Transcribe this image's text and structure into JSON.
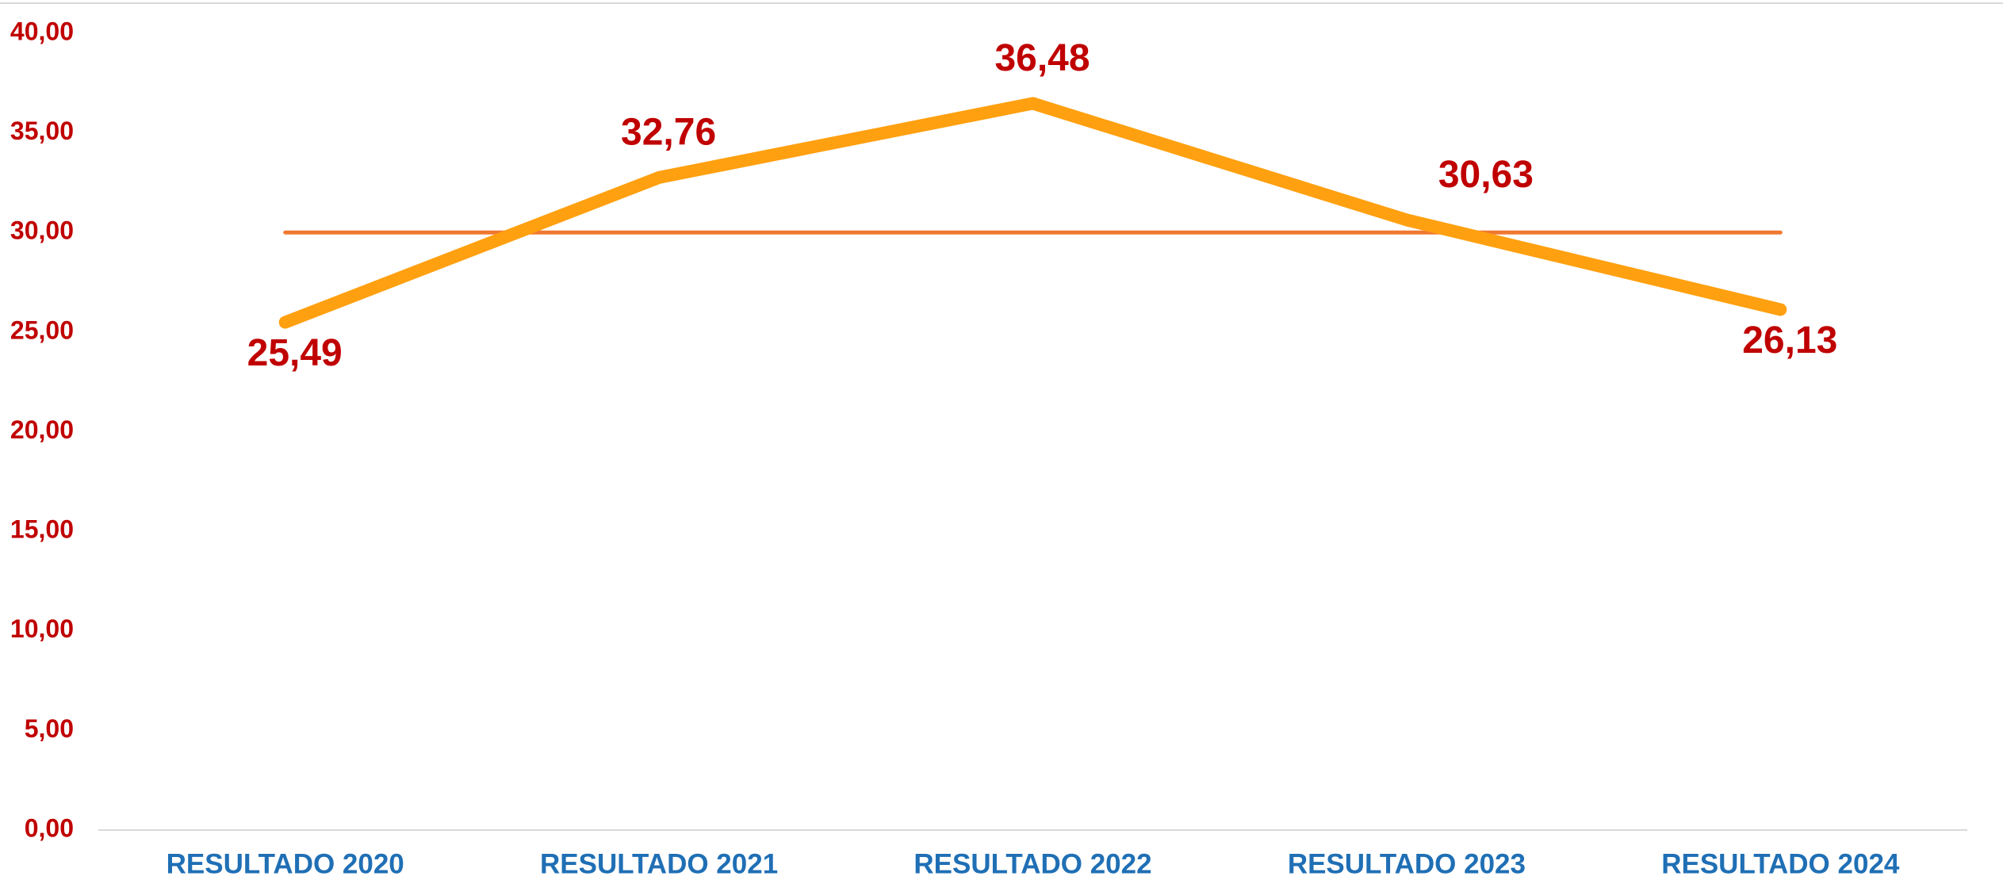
{
  "chart_data": {
    "type": "line",
    "categories": [
      "RESULTADO 2020",
      "RESULTADO 2021",
      "RESULTADO 2022",
      "RESULTADO 2023",
      "RESULTADO 2024"
    ],
    "series": [
      {
        "color": "#ffa010",
        "values": [
          25.49,
          32.76,
          36.48,
          30.63,
          26.13
        ],
        "value_labels": [
          "25,49",
          "32,76",
          "36,48",
          "30,63",
          "26,13"
        ]
      },
      {
        "color": "#f07830",
        "values": [
          30,
          30,
          30,
          30,
          30
        ]
      }
    ],
    "ylim": [
      0,
      40
    ],
    "yticks": [
      {
        "value": 0,
        "label": "0,00"
      },
      {
        "value": 5,
        "label": "5,00"
      },
      {
        "value": 10,
        "label": "10,00"
      },
      {
        "value": 15,
        "label": "15,00"
      },
      {
        "value": 20,
        "label": "20,00"
      },
      {
        "value": 25,
        "label": "25,00"
      },
      {
        "value": 30,
        "label": "30,00"
      },
      {
        "value": 35,
        "label": "35,00"
      },
      {
        "value": 40,
        "label": "40,00"
      }
    ],
    "grid": false
  }
}
